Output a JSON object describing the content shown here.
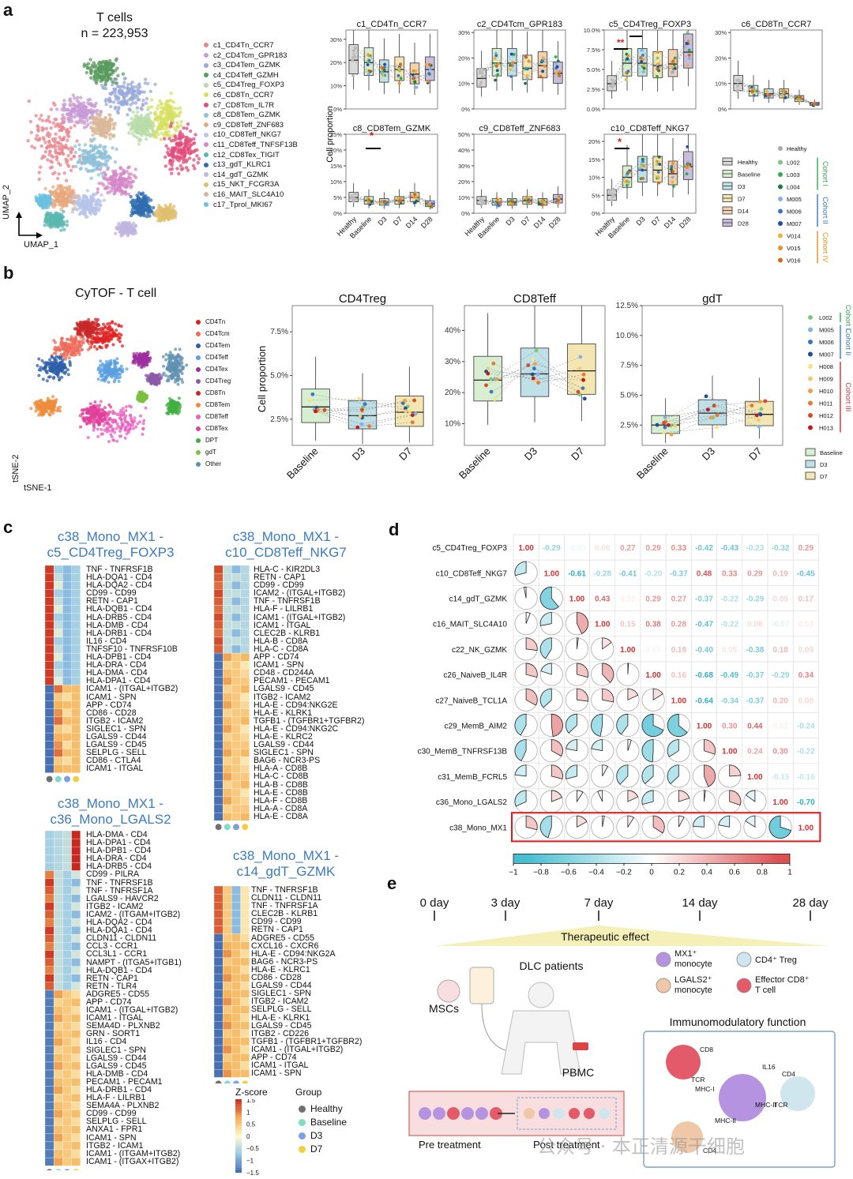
{
  "panels": {
    "a": "a",
    "b": "b",
    "c": "c",
    "d": "d",
    "e": "e"
  },
  "panel_a": {
    "umap_title": "T cells",
    "umap_count": "n = 223,953",
    "axis_x": "UMAP_1",
    "axis_y": "UMAP_2",
    "clusters": [
      {
        "label": "c1_CD4Tn_CCR7",
        "color": "#e8848c"
      },
      {
        "label": "c2_CD4Tcm_GPR183",
        "color": "#c79bd6"
      },
      {
        "label": "c3_CD4Tem_GZMK",
        "color": "#9aa9d9"
      },
      {
        "label": "c4_CD4Teff_GZMH",
        "color": "#5a9b5e"
      },
      {
        "label": "c5_CD4Treg_FOXP3",
        "color": "#b7dca8"
      },
      {
        "label": "c6_CD8Tn_CCR7",
        "color": "#d6e060"
      },
      {
        "label": "c7_CD8Tcm_IL7R",
        "color": "#e24d7c"
      },
      {
        "label": "c8_CD8Tem_GZMK",
        "color": "#8ec0d8"
      },
      {
        "label": "c9_CD8Teff_ZNF683",
        "color": "#e8a87c"
      },
      {
        "label": "c10_CD8Teff_NKG7",
        "color": "#b8c4e8"
      },
      {
        "label": "c11_CD8Teff_TNFSF13B",
        "color": "#d488c8"
      },
      {
        "label": "c12_CD8Tex_TIGIT",
        "color": "#5bb8b0"
      },
      {
        "label": "c13_gdT_KLRC1",
        "color": "#2f6db0"
      },
      {
        "label": "c14_gdT_GZMK",
        "color": "#c0b6e0"
      },
      {
        "label": "c15_NKT_FCGR3A",
        "color": "#e0c070"
      },
      {
        "label": "c16_MAIT_SLC4A10",
        "color": "#d9b89a"
      },
      {
        "label": "c17_Tprol_MKI67",
        "color": "#6cc0e0"
      }
    ],
    "y_axis_label": "Cell proportion",
    "x_categories": [
      "Healthy",
      "Baseline",
      "D3",
      "D7",
      "D14",
      "D28"
    ],
    "box_legend": [
      "Healthy",
      "Baseline",
      "D3",
      "D7",
      "D14",
      "D28"
    ],
    "box_colors": {
      "Healthy": "#d9d9d9",
      "Baseline": "#d8eed0",
      "D3": "#bfe0e6",
      "D7": "#f3e6b3",
      "D14": "#f2d0b0",
      "D28": "#c9bcdc"
    },
    "patients": [
      {
        "label": "Healthy",
        "color": "#aaaaaa"
      },
      {
        "label": "L002",
        "color": "#7fc97f"
      },
      {
        "label": "L003",
        "color": "#34a853"
      },
      {
        "label": "L004",
        "color": "#1b7a3a"
      },
      {
        "label": "M005",
        "color": "#7fb3e8"
      },
      {
        "label": "M006",
        "color": "#3a75c4"
      },
      {
        "label": "M007",
        "color": "#1f4e9a"
      },
      {
        "label": "V014",
        "color": "#f2b233"
      },
      {
        "label": "V015",
        "color": "#e89220"
      },
      {
        "label": "V016",
        "color": "#d9661c"
      }
    ],
    "cohorts": [
      {
        "label": "Cohort I",
        "color": "#34a853"
      },
      {
        "label": "Cohort II",
        "color": "#3a75c4"
      },
      {
        "label": "Cohort IV",
        "color": "#e89220"
      }
    ],
    "star": "*",
    "double_star": "**"
  },
  "chart_data": [
    {
      "type": "box",
      "title": "c1_CD4Tn_CCR7",
      "ylabel": "Cell proportion",
      "ticks": [
        "0%",
        "10%",
        "20%",
        "30%"
      ],
      "ylim": [
        0,
        0.34
      ],
      "medians": [
        0.21,
        0.2,
        0.16,
        0.17,
        0.15,
        0.17
      ]
    },
    {
      "type": "box",
      "title": "c2_CD4Tcm_GPR183",
      "ticks": [
        "0%",
        "10%",
        "20%",
        "30%"
      ],
      "ylim": [
        0,
        0.31
      ],
      "medians": [
        0.12,
        0.18,
        0.18,
        0.16,
        0.17,
        0.14
      ]
    },
    {
      "type": "box",
      "title": "c5_CD4Treg_FOXP3",
      "ticks": [
        "0.0%",
        "2.5%",
        "5.0%",
        "7.5%",
        "10.0%"
      ],
      "ylim": [
        0,
        0.1
      ],
      "medians": [
        0.032,
        0.058,
        0.058,
        0.055,
        0.057,
        0.072
      ]
    },
    {
      "type": "box",
      "title": "c6_CD8Tn_CCR7",
      "ticks": [
        "0%",
        "10%",
        "20%",
        "30%"
      ],
      "ylim": [
        0,
        0.31
      ],
      "medians": [
        0.1,
        0.07,
        0.06,
        0.06,
        0.04,
        0.02
      ]
    },
    {
      "type": "box",
      "title": "c8_CD8Tem_GZMK",
      "ticks": [
        "0%",
        "5%",
        "10%",
        "15%",
        "20%",
        "25%"
      ],
      "ylim": [
        0,
        0.25
      ],
      "medians": [
        0.05,
        0.04,
        0.035,
        0.04,
        0.05,
        0.03
      ]
    },
    {
      "type": "box",
      "title": "c9_CD8Teff_ZNF683",
      "ticks": [
        "0%",
        "10%",
        "20%",
        "30%",
        "40%",
        "50%"
      ],
      "ylim": [
        0,
        0.5
      ],
      "medians": [
        0.08,
        0.07,
        0.07,
        0.08,
        0.07,
        0.09
      ]
    },
    {
      "type": "box",
      "title": "c10_CD8Teff_NKG7",
      "ticks": [
        "0%",
        "5%",
        "10%",
        "15%",
        "20%"
      ],
      "ylim": [
        0,
        0.22
      ],
      "medians": [
        0.05,
        0.1,
        0.12,
        0.12,
        0.11,
        0.13
      ]
    },
    {
      "type": "box",
      "title": "CD4Treg",
      "ticks": [
        "2.5%",
        "5.0%",
        "7.5%"
      ],
      "ylim": [
        0.01,
        0.09
      ],
      "categories": [
        "Baseline",
        "D3",
        "D7"
      ],
      "medians": [
        0.032,
        0.027,
        0.029
      ]
    },
    {
      "type": "box",
      "title": "CD8Teff",
      "ticks": [
        "10%",
        "20%",
        "30%",
        "40%"
      ],
      "ylim": [
        0.03,
        0.48
      ],
      "categories": [
        "Baseline",
        "D3",
        "D7"
      ],
      "medians": [
        0.24,
        0.26,
        0.27
      ]
    },
    {
      "type": "box",
      "title": "gdT",
      "ticks": [
        "2.5%",
        "5.0%",
        "7.5%",
        "10.0%",
        "12.5%"
      ],
      "ylim": [
        0.008,
        0.125
      ],
      "categories": [
        "Baseline",
        "D3",
        "D7"
      ],
      "medians": [
        0.025,
        0.035,
        0.034
      ]
    }
  ],
  "panel_b": {
    "tsne_title": "CyTOF - T cell",
    "axis_x": "tSNE-1",
    "axis_y": "tSNE-2",
    "y_axis_label": "Cell proportion",
    "celltypes": [
      {
        "label": "CD4Tn",
        "color": "#e02020"
      },
      {
        "label": "CD4Tcm",
        "color": "#ef6b5a"
      },
      {
        "label": "CD4Tem",
        "color": "#2e5fa8"
      },
      {
        "label": "CD4Teff",
        "color": "#5aa0e0"
      },
      {
        "label": "CD4Tex",
        "color": "#9f2fa0"
      },
      {
        "label": "CD4Treg",
        "color": "#8c5aa8"
      },
      {
        "label": "CD8Tn",
        "color": "#c82828"
      },
      {
        "label": "CD8Tem",
        "color": "#ef8c3c"
      },
      {
        "label": "CD8Teff",
        "color": "#e860c0"
      },
      {
        "label": "CD8Tex",
        "color": "#e0409a"
      },
      {
        "label": "DPT",
        "color": "#40b040"
      },
      {
        "label": "gdT",
        "color": "#7cc040"
      },
      {
        "label": "Other",
        "color": "#6090b0"
      }
    ],
    "patients": [
      {
        "label": "L002",
        "color": "#7fc97f"
      },
      {
        "label": "M005",
        "color": "#7fb3e8"
      },
      {
        "label": "M006",
        "color": "#3a75c4"
      },
      {
        "label": "M007",
        "color": "#1f4e9a"
      },
      {
        "label": "H008",
        "color": "#f4e48a"
      },
      {
        "label": "H009",
        "color": "#f2c870"
      },
      {
        "label": "H010",
        "color": "#f0a040"
      },
      {
        "label": "H011",
        "color": "#e87830"
      },
      {
        "label": "H012",
        "color": "#d84a28"
      },
      {
        "label": "H013",
        "color": "#c01c20"
      }
    ],
    "cohorts": [
      {
        "label": "Cohort I",
        "color": "#34a853"
      },
      {
        "label": "Cohort II",
        "color": "#3a75c4"
      },
      {
        "label": "Cohort III",
        "color": "#d83030"
      }
    ],
    "box_legend": [
      "Baseline",
      "D3",
      "D7"
    ]
  },
  "panel_c": {
    "hm1_title": [
      "c38_Mono_MX1 -",
      "c5_CD4Treg_FOXP3"
    ],
    "hm1_rows": [
      "TNF - TNFRSF1B",
      "HLA-DQA1 - CD4",
      "HLA-DQA2 - CD4",
      "CD99 - CD99",
      "RETN - CAP1",
      "HLA-DQB1 - CD4",
      "HLA-DRB5 - CD4",
      "HLA-DMB - CD4",
      "HLA-DRB1 - CD4",
      "IL16 - CD4",
      "TNFSF10 - TNFRSF10B",
      "HLA-DPB1 - CD4",
      "HLA-DRA - CD4",
      "HLA-DMA - CD4",
      "HLA-DPA1 - CD4",
      "ICAM1 - (ITGAL+ITGB2)",
      "ICAM1 - SPN",
      "APP - CD74",
      "CD86 - CD28",
      "ITGB2 - ICAM2",
      "SIGLEC1 - SPN",
      "LGALS9 - CD44",
      "LGALS9 - CD45",
      "SELPLG - SELL",
      "CD86 - CTLA4",
      "ICAM1 - ITGAL"
    ],
    "hm2_title": [
      "c38_Mono_MX1 -",
      "c10_CD8Teff_NKG7"
    ],
    "hm2_rows": [
      "HLA-C - KIR2DL3",
      "RETN - CAP1",
      "CD99 - CD99",
      "ICAM2 - (ITGAL+ITGB2)",
      "TNF - TNFRSF1B",
      "HLA-F - LILRB1",
      "ICAM1 - (ITGAL+ITGB2)",
      "ICAM1 - ITGAL",
      "CLEC2B - KLRB1",
      "HLA-B - CD8A",
      "HLA-C - CD8A",
      "APP - CD74",
      "ICAM1 - SPN",
      "CD48 - CD244A",
      "PECAM1 - PECAM1",
      "LGALS9 - CD45",
      "ITGB2 - ICAM2",
      "HLA-E - CD94:NKG2E",
      "HLA-E - KLRK1",
      "TGFB1 - (TGFBR1+TGFBR2)",
      "HLA-E - CD94:NKG2C",
      "HLA-E - KLRC2",
      "LGALS9 - CD44",
      "SIGLEC1 - SPN",
      "BAG6 - NCR3-PS",
      "HLA-A - CD8B",
      "HLA-C - CD8B",
      "HLA-B - CD8B",
      "HLA-E - CD8B",
      "HLA-F - CD8B",
      "HLA-A - CD8A",
      "HLA-E - CD8A"
    ],
    "hm3_title": [
      "c38_Mono_MX1 -",
      "c36_Mono_LGALS2"
    ],
    "hm3_rows": [
      "HLA-DMA - CD4",
      "HLA-DPA1 - CD4",
      "HLA-DPB1 - CD4",
      "HLA-DRA - CD4",
      "HLA-DRB5 - CD4",
      "CD99 - PILRA",
      "TNF - TNFRSF1B",
      "TNF - TNFRSF1A",
      "LGALS9 - HAVCR2",
      "ITGB2 - ICAM2",
      "ICAM2 - (ITGAM+ITGB2)",
      "HLA-DQA2 - CD4",
      "HLA-DQA1 - CD4",
      "CLDN11 - CLDN11",
      "CCL3 - CCR1",
      "CCL3L1 - CCR1",
      "NAMPT - (ITGA5+ITGB1)",
      "HLA-DQB1 - CD4",
      "RETN - CAP1",
      "RETN - TLR4",
      "ADGRE5 - CD55",
      "APP - CD74",
      "ICAM1 - (ITGAL+ITGB2)",
      "ICAM1 - ITGAL",
      "SEMA4D - PLXNB2",
      "GRN - SORT1",
      "IL16 - CD4",
      "SIGLEC1 - SPN",
      "LGALS9 - CD44",
      "LGALS9 - CD45",
      "HLA-DMB - CD4",
      "PECAM1 - PECAM1",
      "HLA-DRB1 - CD4",
      "HLA-F - LILRB1",
      "SEMA4A - PLXNB2",
      "CD99 - CD99",
      "SELPLG - SELL",
      "ANXA1 - FPR1",
      "ICAM1 - SPN",
      "ITGB2 - ICAM1",
      "ICAM1 - (ITGAM+ITGB2)",
      "ICAM1 - (ITGAX+ITGB2)"
    ],
    "hm4_title": [
      "c38_Mono_MX1 -",
      "c14_gdT_GZMK"
    ],
    "hm4_rows": [
      "TNF - TNFRSF1B",
      "CLDN11 - CLDN11",
      "TNF - TNFRSF1A",
      "CLEC2B - KLRB1",
      "CD99 - CD99",
      "RETN - CAP1",
      "ADGRE5 - CD55",
      "CXCL16 - CXCR6",
      "HLA-E - CD94:NKG2A",
      "BAG6 - NCR3-PS",
      "HLA-E - KLRC1",
      "CD86 - CD28",
      "LGALS9 - CD44",
      "SIGLEC1 - SPN",
      "ITGB2 - ICAM2",
      "SELPLG - SELL",
      "HLA-E - KLRK1",
      "LGALS9 - CD45",
      "ITGB2 - CD226",
      "TGFB1 - (TGFBR1+TGFBR2)",
      "ICAM1 - (ITGAL+ITGB2)",
      "APP - CD74",
      "ICAM1 - ITGAL",
      "ICAM1 - SPN"
    ],
    "zscore_title": "Z-score",
    "zscore_ticks": [
      "1.5",
      "1",
      "0.5",
      "0",
      "−0.5",
      "−1",
      "−1.5"
    ],
    "group_title": "Group",
    "groups": [
      {
        "label": "Healthy",
        "color": "#707070"
      },
      {
        "label": "Baseline",
        "color": "#7fdcc8"
      },
      {
        "label": "D3",
        "color": "#7f9fe0"
      },
      {
        "label": "D7",
        "color": "#f0d040"
      }
    ]
  },
  "panel_d": {
    "labels": [
      "c5_CD4Treg_FOXP3",
      "c10_CD8Teff_NKG7",
      "c14_gdT_GZMK",
      "c16_MAIT_SLC4A10",
      "c22_NK_GZMK",
      "c26_NaiveB_IL4R",
      "c27_NaiveB_TCL1A",
      "c29_MemB_AIM2",
      "c30_MemB_TNFRSF13B",
      "c31_MemB_FCRL5",
      "c36_Mono_LGALS2",
      "c38_Mono_MX1"
    ],
    "matrix": [
      [
        1.0,
        -0.29,
        -0.03,
        0.06,
        0.27,
        0.29,
        0.33,
        -0.42,
        -0.43,
        -0.23,
        -0.32,
        0.29
      ],
      [
        -0.29,
        1.0,
        -0.61,
        -0.28,
        -0.41,
        -0.2,
        -0.37,
        0.48,
        0.33,
        0.29,
        0.19,
        -0.45
      ],
      [
        -0.03,
        -0.61,
        1.0,
        0.43,
        0.02,
        0.29,
        0.27,
        -0.37,
        -0.22,
        -0.29,
        0.09,
        0.17
      ],
      [
        0.06,
        -0.28,
        0.43,
        1.0,
        0.15,
        0.38,
        0.28,
        -0.47,
        -0.22,
        0.08,
        -0.07,
        0.03
      ],
      [
        0.27,
        -0.41,
        0.02,
        0.15,
        1.0,
        0.01,
        0.18,
        -0.4,
        0.05,
        -0.38,
        0.18,
        0.09
      ],
      [
        0.29,
        -0.2,
        0.29,
        0.38,
        0.01,
        1.0,
        0.16,
        -0.68,
        -0.49,
        -0.37,
        -0.29,
        0.34
      ],
      [
        0.33,
        -0.37,
        0.27,
        0.28,
        0.18,
        0.16,
        1.0,
        -0.64,
        -0.34,
        -0.37,
        0.2,
        0.08
      ],
      [
        -0.42,
        0.48,
        -0.37,
        -0.47,
        -0.4,
        -0.68,
        -0.64,
        1.0,
        0.3,
        0.44,
        0.02,
        -0.24
      ],
      [
        -0.43,
        0.33,
        -0.22,
        -0.22,
        0.05,
        -0.49,
        -0.34,
        0.3,
        1.0,
        0.24,
        0.3,
        -0.22
      ],
      [
        -0.23,
        0.29,
        -0.29,
        0.08,
        -0.38,
        -0.37,
        -0.37,
        0.44,
        0.24,
        1.0,
        -0.15,
        -0.16
      ],
      [
        -0.32,
        0.19,
        0.09,
        -0.07,
        0.18,
        -0.29,
        0.2,
        0.02,
        0.3,
        -0.15,
        1.0,
        -0.7
      ],
      [
        0.29,
        -0.45,
        0.17,
        0.03,
        0.09,
        0.34,
        0.08,
        -0.24,
        -0.22,
        -0.16,
        -0.7,
        1.0
      ]
    ],
    "scale_ticks": [
      "−1",
      "−0.8",
      "−0.6",
      "−0.4",
      "−0.2",
      "0",
      "0.2",
      "0.4",
      "0.6",
      "0.8",
      "1"
    ]
  },
  "panel_e": {
    "timeline": [
      "0 day",
      "3 day",
      "7 day",
      "14 day",
      "28 day"
    ],
    "effect": "Therapeutic effect",
    "dlc": "DLC patients",
    "mscs": "MSCs",
    "pbmc": "PBMC",
    "pre": "Pre treatment",
    "post": "Post treatment",
    "immuno": "Immunomodulatory function",
    "legend": [
      {
        "label": "MX1⁺\nmonocyte",
        "color": "#b593e0"
      },
      {
        "label": "CD4⁺ Treg",
        "color": "#cfe6ef"
      },
      {
        "label": "LGALS2⁺\nmonocyte",
        "color": "#f0c8a8"
      },
      {
        "label": "Effector CD8⁺\nT cell",
        "color": "#e35a6a"
      }
    ],
    "cell_labels": [
      "CD8",
      "TCR",
      "MHC-I",
      "IL16",
      "CD4",
      "MHC-II",
      "TCR",
      "MHC-II",
      "CD4"
    ]
  },
  "watermark": "公众号 · 本正清源干细胞"
}
